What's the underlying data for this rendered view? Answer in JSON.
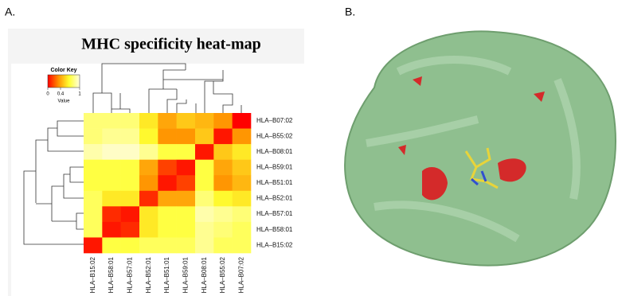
{
  "panel_labels": [
    "A.",
    "B."
  ],
  "chart_data": {
    "type": "heatmap",
    "title": "MHC specificity heat-map",
    "rows": [
      "HLA–B07:02",
      "HLA–B55:02",
      "HLA–B08:01",
      "HLA–B59:01",
      "HLA–B51:01",
      "HLA–B52:01",
      "HLA–B57:01",
      "HLA–B58:01",
      "HLA–B15:02"
    ],
    "columns": [
      "HLA–B15:02",
      "HLA–B58:01",
      "HLA–B57:01",
      "HLA–B52:01",
      "HLA–B51:01",
      "HLA–B59:01",
      "HLA–B08:01",
      "HLA–B55:02",
      "HLA–B07:02"
    ],
    "values": [
      [
        0.8,
        0.8,
        0.8,
        0.6,
        0.4,
        0.5,
        0.45,
        0.35,
        0
      ],
      [
        0.8,
        0.85,
        0.85,
        0.65,
        0.35,
        0.35,
        0.5,
        0.05,
        0.35
      ],
      [
        0.9,
        0.95,
        0.95,
        0.85,
        0.7,
        0.7,
        0.05,
        0.5,
        0.6
      ],
      [
        0.7,
        0.7,
        0.7,
        0.4,
        0.15,
        0.05,
        0.7,
        0.4,
        0.5
      ],
      [
        0.7,
        0.7,
        0.7,
        0.35,
        0.05,
        0.15,
        0.7,
        0.35,
        0.45
      ],
      [
        0.75,
        0.6,
        0.6,
        0.1,
        0.4,
        0.4,
        0.8,
        0.65,
        0.6
      ],
      [
        0.75,
        0.1,
        0.05,
        0.6,
        0.7,
        0.7,
        0.9,
        0.85,
        0.8
      ],
      [
        0.75,
        0.05,
        0.1,
        0.6,
        0.7,
        0.7,
        0.85,
        0.8,
        0.75
      ],
      [
        0.05,
        0.7,
        0.7,
        0.75,
        0.75,
        0.75,
        0.85,
        0.75,
        0.75
      ]
    ],
    "colors": [
      "#ff0000",
      "#ff9000",
      "#ffff30",
      "#fffde0"
    ],
    "colorbar": {
      "title": "Color Key",
      "label": "Value",
      "lim": [
        0,
        1
      ],
      "ticks": [
        0,
        0.4,
        1
      ]
    }
  }
}
